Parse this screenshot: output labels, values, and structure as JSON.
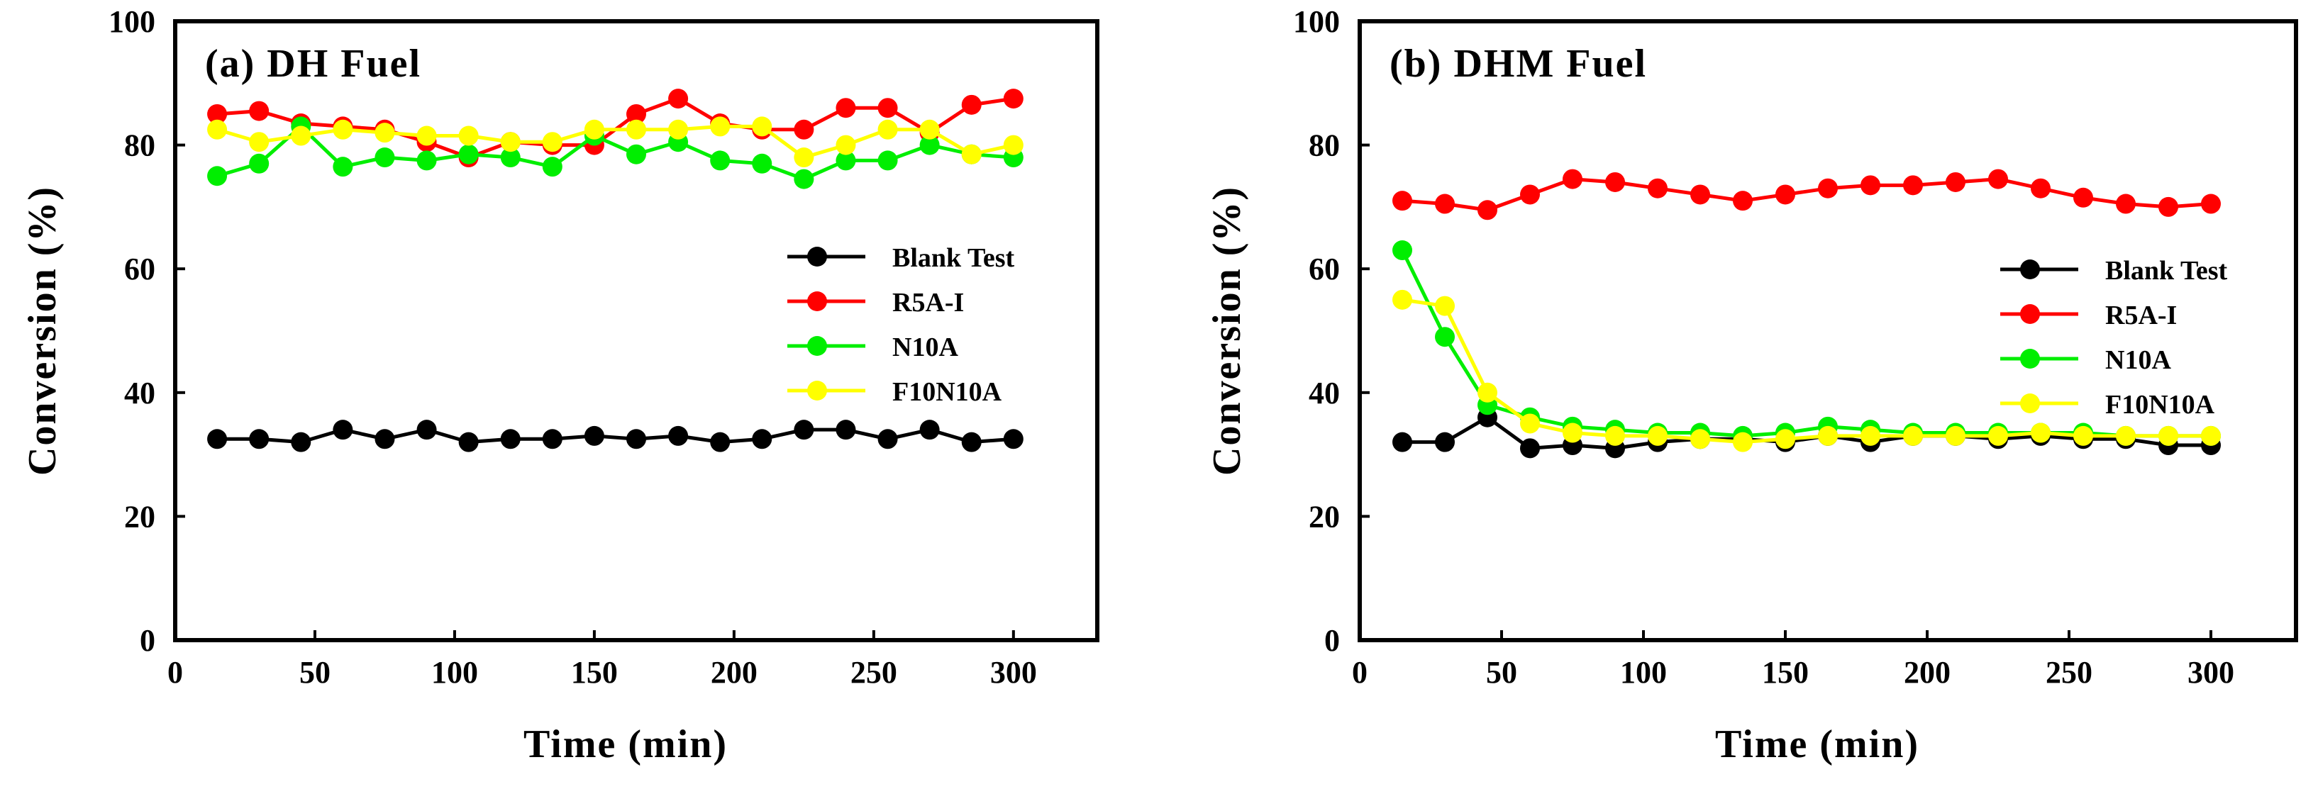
{
  "chart_data": [
    {
      "type": "line",
      "title": "(a) DH Fuel",
      "xlabel": "Time (min)",
      "ylabel": "Conversion (%)",
      "xlim": [
        0,
        330
      ],
      "ylim": [
        0,
        100
      ],
      "xticks": [
        0,
        50,
        100,
        150,
        200,
        250,
        300
      ],
      "yticks": [
        0,
        20,
        40,
        60,
        80,
        100
      ],
      "legend_position": "right",
      "x": [
        15,
        30,
        45,
        60,
        75,
        90,
        105,
        120,
        135,
        150,
        165,
        180,
        195,
        210,
        225,
        240,
        255,
        270,
        285,
        300
      ],
      "series": [
        {
          "name": "Blank Test",
          "color": "#000000",
          "values": [
            32.5,
            32.5,
            32,
            34,
            32.5,
            34,
            32,
            32.5,
            32.5,
            33,
            32.5,
            33,
            32,
            32.5,
            34,
            34,
            32.5,
            34,
            32,
            32.5
          ]
        },
        {
          "name": "R5A-I",
          "color": "#ff0000",
          "values": [
            85,
            85.5,
            83.5,
            83,
            82.5,
            80.5,
            78,
            80.5,
            80,
            80,
            85,
            87.5,
            83.5,
            82.5,
            82.5,
            86,
            86,
            82,
            86.5,
            87.5
          ]
        },
        {
          "name": "N10A",
          "color": "#00ee00",
          "values": [
            75,
            77,
            83,
            76.5,
            78,
            77.5,
            78.5,
            78,
            76.5,
            81.5,
            78.5,
            80.5,
            77.5,
            77,
            74.5,
            77.5,
            77.5,
            80,
            78.5,
            78
          ]
        },
        {
          "name": "F10N10A",
          "color": "#ffff00",
          "values": [
            82.5,
            80.5,
            81.5,
            82.5,
            82,
            81.5,
            81.5,
            80.5,
            80.5,
            82.5,
            82.5,
            82.5,
            83,
            83,
            78,
            80,
            82.5,
            82.5,
            78.5,
            80
          ]
        }
      ]
    },
    {
      "type": "line",
      "title": "(b) DHM Fuel",
      "xlabel": "Time (min)",
      "ylabel": "Conversion (%)",
      "xlim": [
        0,
        330
      ],
      "ylim": [
        0,
        100
      ],
      "xticks": [
        0,
        50,
        100,
        150,
        200,
        250,
        300
      ],
      "yticks": [
        0,
        20,
        40,
        60,
        80,
        100
      ],
      "legend_position": "right",
      "x": [
        15,
        30,
        45,
        60,
        75,
        90,
        105,
        120,
        135,
        150,
        165,
        180,
        195,
        210,
        225,
        240,
        255,
        270,
        285,
        300
      ],
      "series": [
        {
          "name": "Blank Test",
          "color": "#000000",
          "values": [
            32,
            32,
            36,
            31,
            31.5,
            31,
            32,
            32.5,
            32.5,
            32,
            33,
            32,
            33,
            33,
            32.5,
            33,
            32.5,
            32.5,
            31.5,
            31.5
          ]
        },
        {
          "name": "R5A-I",
          "color": "#ff0000",
          "values": [
            71,
            70.5,
            69.5,
            72,
            74.5,
            74,
            73,
            72,
            71,
            72,
            73,
            73.5,
            73.5,
            74,
            74.5,
            73,
            71.5,
            70.5,
            70,
            70.5
          ]
        },
        {
          "name": "N10A",
          "color": "#00ee00",
          "values": [
            63,
            49,
            38,
            36,
            34.5,
            34,
            33.5,
            33.5,
            33,
            33.5,
            34.5,
            34,
            33.5,
            33.5,
            33.5,
            33.5,
            33.5,
            33,
            33,
            33
          ]
        },
        {
          "name": "F10N10A",
          "color": "#ffff00",
          "values": [
            55,
            54,
            40,
            35,
            33.5,
            33,
            33,
            32.5,
            32,
            32.5,
            33,
            33,
            33,
            33,
            33,
            33.5,
            33,
            33,
            33,
            33
          ]
        }
      ]
    }
  ]
}
